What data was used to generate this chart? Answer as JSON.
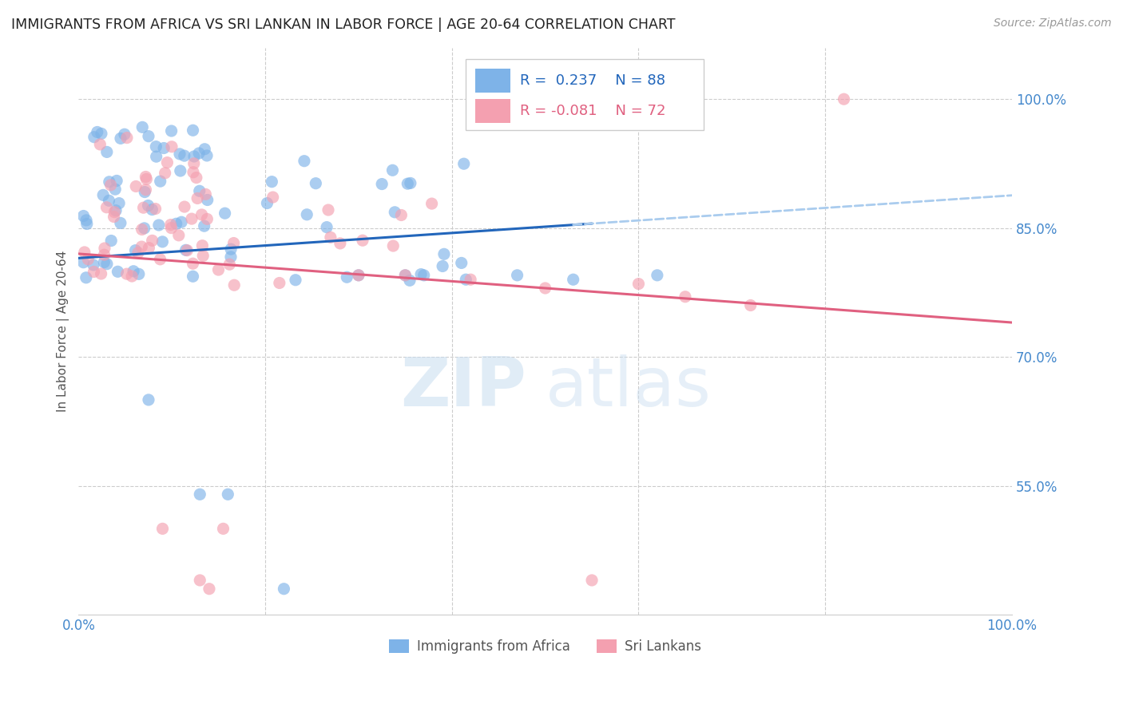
{
  "title": "IMMIGRANTS FROM AFRICA VS SRI LANKAN IN LABOR FORCE | AGE 20-64 CORRELATION CHART",
  "source": "Source: ZipAtlas.com",
  "ylabel": "In Labor Force | Age 20-64",
  "xlim": [
    0.0,
    1.0
  ],
  "ylim": [
    0.4,
    1.06
  ],
  "x_tick_labels": [
    "0.0%",
    "",
    "",
    "",
    "",
    "100.0%"
  ],
  "x_tick_vals": [
    0.0,
    0.2,
    0.4,
    0.6,
    0.8,
    1.0
  ],
  "y_tick_labels_right": [
    "100.0%",
    "85.0%",
    "70.0%",
    "55.0%"
  ],
  "y_tick_vals_right": [
    1.0,
    0.85,
    0.7,
    0.55
  ],
  "watermark": "ZIPatlas",
  "legend_africa_label": "Immigrants from Africa",
  "legend_sri_label": "Sri Lankans",
  "R_africa": 0.237,
  "N_africa": 88,
  "R_sri": -0.081,
  "N_sri": 72,
  "africa_color": "#7eb3e8",
  "sri_color": "#f4a0b0",
  "africa_line_color": "#2266bb",
  "sri_line_color": "#e06080",
  "trendline_dash_color": "#aaccee",
  "background_color": "#ffffff",
  "grid_color": "#cccccc"
}
